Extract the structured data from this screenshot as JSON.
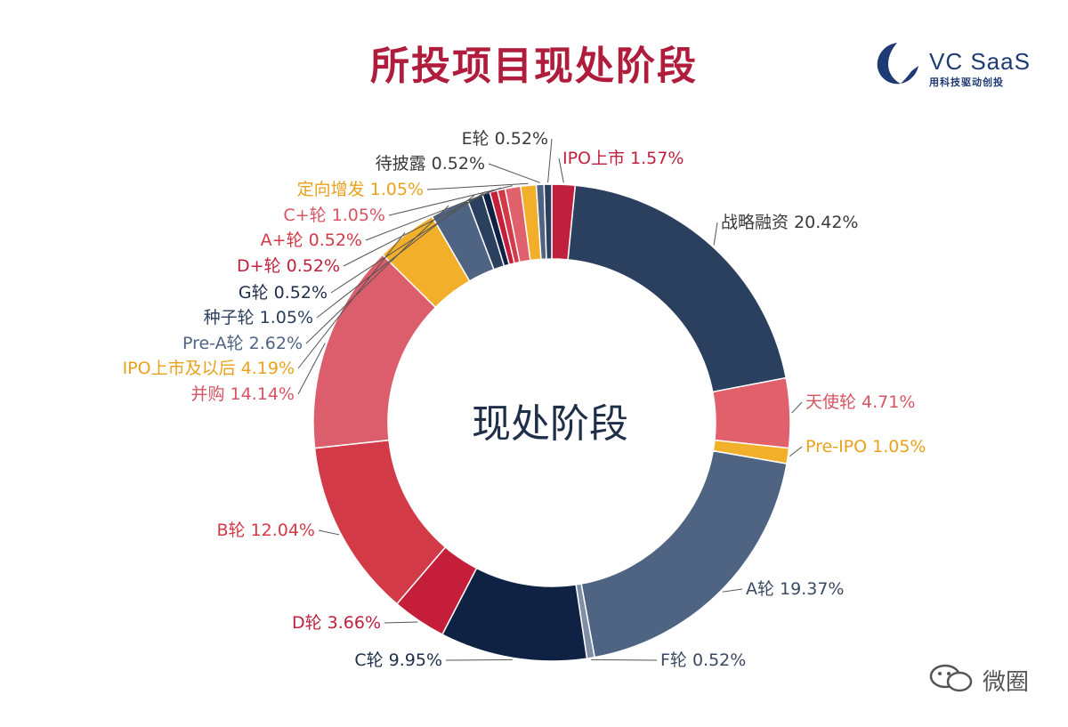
{
  "header": {
    "title": "所投项目现处阶段"
  },
  "logo": {
    "name": "VC SaaS",
    "tagline": "用科技驱动创投",
    "color": "#1f3b73"
  },
  "watermark": {
    "text": "微圈"
  },
  "chart_data": {
    "type": "pie",
    "donut": true,
    "center_label": "现处阶段",
    "slices": [
      {
        "label": "IPO上市",
        "value": 1.57,
        "color": "#c0203e",
        "label_color": "#c0203e"
      },
      {
        "label": "战略融资",
        "value": 20.42,
        "color": "#2b3f5e",
        "label_color": "#3a3a3a"
      },
      {
        "label": "天使轮",
        "value": 4.71,
        "color": "#e0606b",
        "label_color": "#d65563"
      },
      {
        "label": "Pre-IPO",
        "value": 1.05,
        "color": "#f2b02a",
        "label_color": "#e8a21c"
      },
      {
        "label": "A轮",
        "value": 19.37,
        "color": "#4e6482",
        "label_color": "#3a4a62"
      },
      {
        "label": "F轮",
        "value": 0.52,
        "color": "#7f8fa6",
        "label_color": "#3a4a62"
      },
      {
        "label": "C轮",
        "value": 9.95,
        "color": "#0f2244",
        "label_color": "#1f2f4a"
      },
      {
        "label": "D轮",
        "value": 3.66,
        "color": "#c41e3a",
        "label_color": "#c0203e"
      },
      {
        "label": "B轮",
        "value": 12.04,
        "color": "#d23a48",
        "label_color": "#d23a48"
      },
      {
        "label": "并购",
        "value": 14.14,
        "color": "#dc5e6c",
        "label_color": "#d65563"
      },
      {
        "label": "IPO上市及以后",
        "value": 4.19,
        "color": "#f2b02a",
        "label_color": "#e8a21c"
      },
      {
        "label": "Pre-A轮",
        "value": 2.62,
        "color": "#4e6482",
        "label_color": "#4e6482"
      },
      {
        "label": "种子轮",
        "value": 1.05,
        "color": "#2b3f5e",
        "label_color": "#2b3f5e"
      },
      {
        "label": "G轮",
        "value": 0.52,
        "color": "#0f2244",
        "label_color": "#1f2f4a"
      },
      {
        "label": "D+轮",
        "value": 0.52,
        "color": "#c41e3a",
        "label_color": "#c0203e"
      },
      {
        "label": "A+轮",
        "value": 0.52,
        "color": "#d23a48",
        "label_color": "#d23a48"
      },
      {
        "label": "C+轮",
        "value": 1.05,
        "color": "#e0606b",
        "label_color": "#d65563"
      },
      {
        "label": "定向增发",
        "value": 1.05,
        "color": "#f2b02a",
        "label_color": "#e8a21c"
      },
      {
        "label": "待披露",
        "value": 0.52,
        "color": "#4e6482",
        "label_color": "#3a3a3a"
      },
      {
        "label": "E轮",
        "value": 0.52,
        "color": "#2b3f5e",
        "label_color": "#3a3a3a"
      }
    ]
  }
}
